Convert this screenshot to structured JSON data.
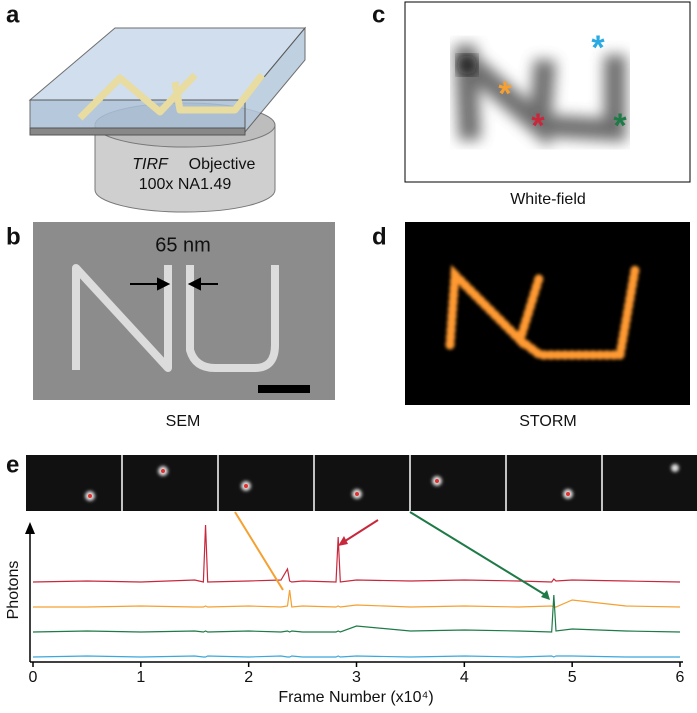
{
  "panels": {
    "a": {
      "label": "a",
      "objective_italic": "TIRF",
      "objective": "Objective",
      "magnification": "100x NA1.49"
    },
    "b": {
      "label": "b",
      "gap": "65 nm",
      "caption": "SEM"
    },
    "c": {
      "label": "c",
      "caption": "White-field"
    },
    "d": {
      "label": "d",
      "caption": "STORM"
    },
    "e": {
      "label": "e"
    }
  },
  "chart_data": {
    "type": "line",
    "xlabel": "Frame Number (x10⁴)",
    "ylabel": "Photons",
    "xlim": [
      0,
      6
    ],
    "xticks": [
      0,
      1,
      2,
      3,
      4,
      5,
      6
    ],
    "ylim": [
      0,
      140
    ],
    "x": [
      0,
      0.5,
      1,
      1.5,
      1.58,
      1.6,
      1.62,
      2,
      2.3,
      2.36,
      2.38,
      2.4,
      2.5,
      2.81,
      2.83,
      2.85,
      3,
      3.5,
      4,
      4.5,
      4.81,
      4.83,
      4.85,
      5,
      5.5,
      6
    ],
    "series": [
      {
        "color": "#c8283c",
        "values": [
          80,
          81,
          80,
          82,
          80,
          137,
          80,
          81,
          82,
          93,
          81,
          80,
          81,
          80,
          125,
          80,
          82,
          81,
          82,
          81,
          80,
          83,
          81,
          82,
          81,
          80
        ]
      },
      {
        "color": "#f5a030",
        "values": [
          55,
          55,
          56,
          55,
          55,
          56,
          55,
          56,
          55,
          56,
          72,
          55,
          56,
          55,
          56,
          55,
          57,
          55,
          56,
          55,
          56,
          55,
          55,
          62,
          56,
          55
        ]
      },
      {
        "color": "#1e7a46",
        "values": [
          30,
          31,
          30,
          31,
          30,
          31,
          30,
          31,
          30,
          31,
          30,
          31,
          30,
          30,
          31,
          30,
          36,
          31,
          32,
          31,
          30,
          67,
          31,
          33,
          31,
          30
        ]
      },
      {
        "color": "#3aa8dc",
        "values": [
          5,
          6,
          5,
          6,
          5,
          5,
          6,
          5,
          6,
          5,
          5,
          6,
          5,
          5,
          6,
          5,
          6,
          5,
          6,
          5,
          6,
          5,
          6,
          6,
          5,
          5
        ]
      }
    ]
  }
}
